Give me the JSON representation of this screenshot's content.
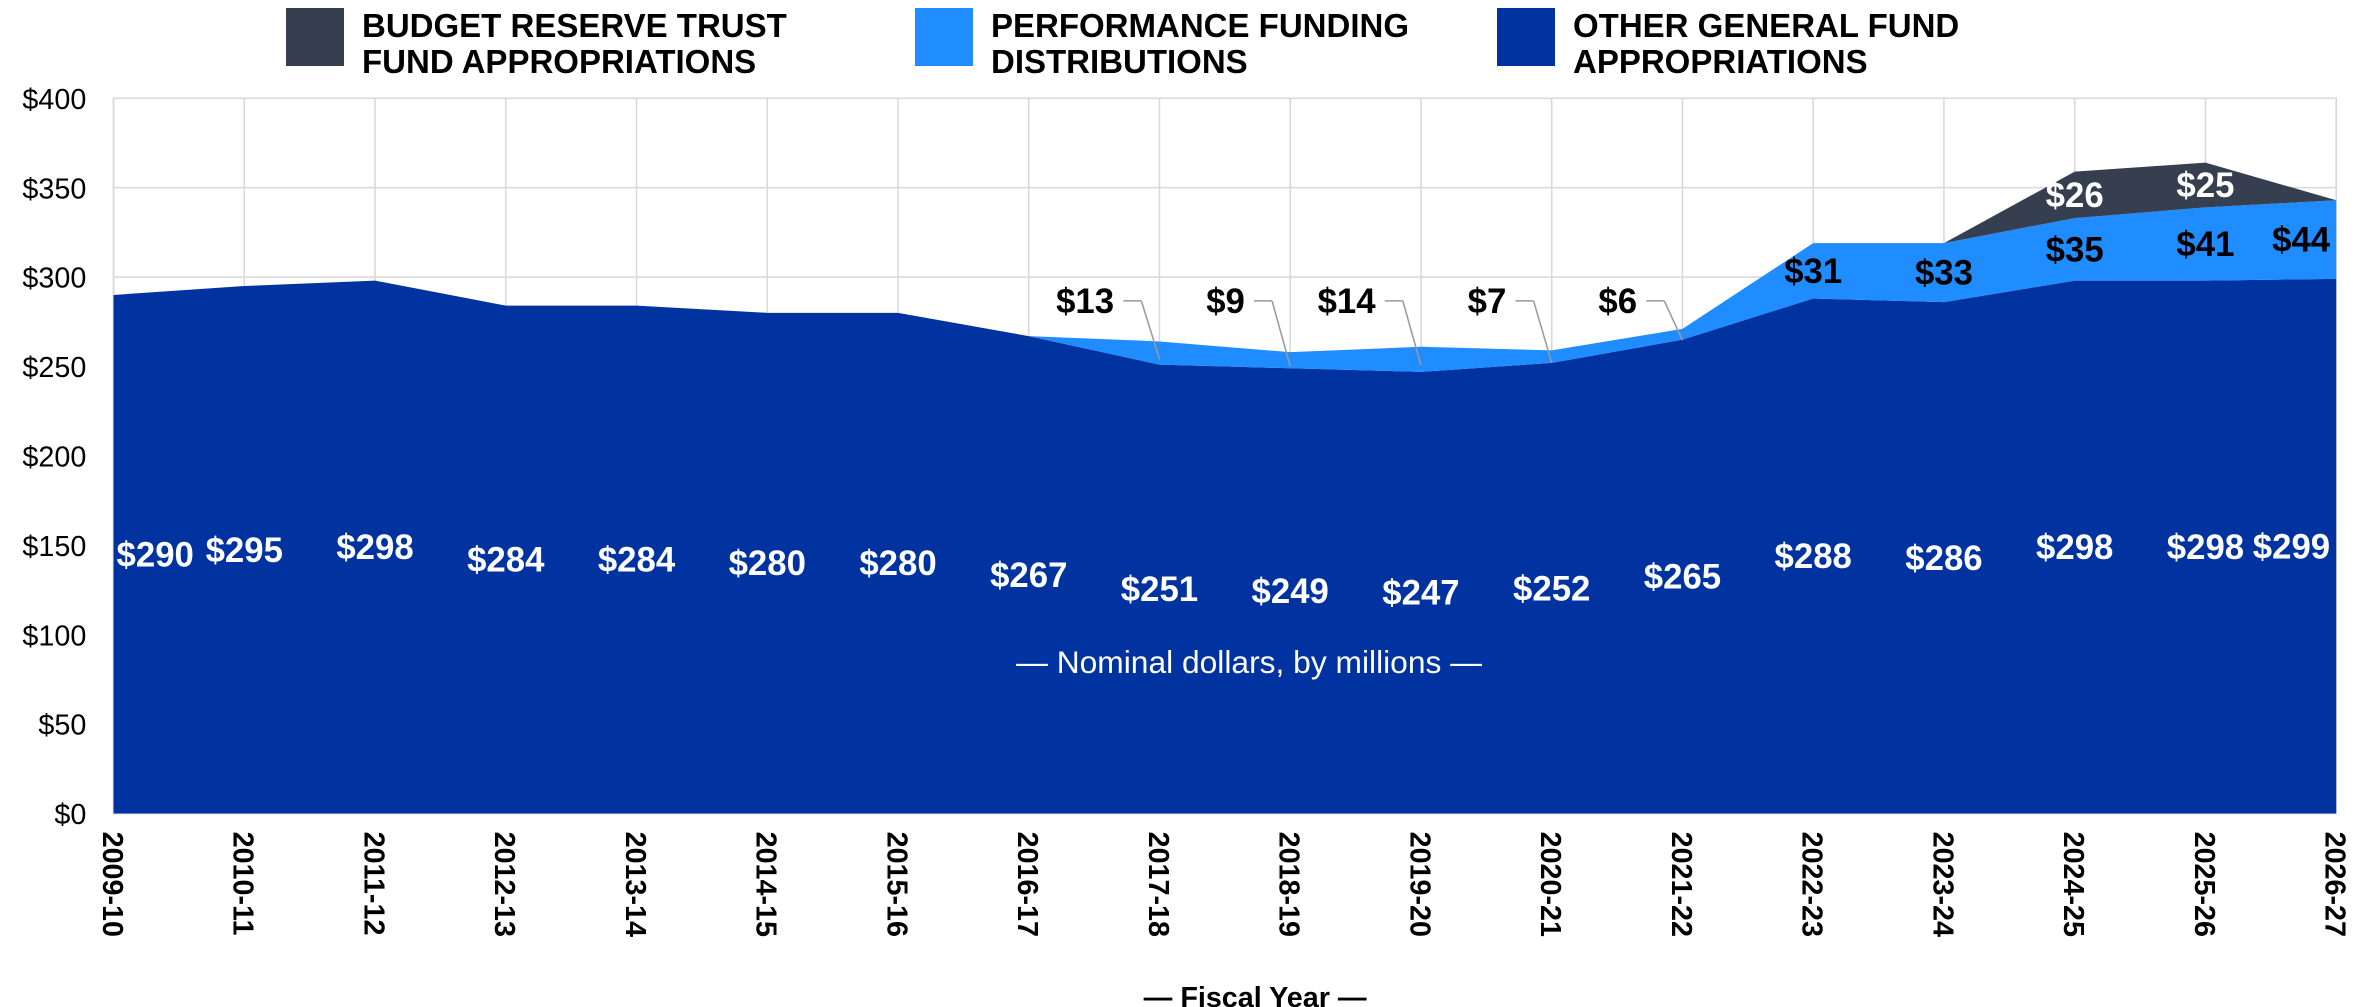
{
  "chart_data": {
    "type": "stacked_area",
    "categories": [
      "2009-10",
      "2010-11",
      "2011-12",
      "2012-13",
      "2013-14",
      "2014-15",
      "2015-16",
      "2016-17",
      "2017-18",
      "2018-19",
      "2019-20",
      "2020-21",
      "2021-22",
      "2022-23",
      "2023-24",
      "2024-25",
      "2025-26",
      "2026-27"
    ],
    "series": [
      {
        "name": "OTHER GENERAL FUND\nAPPROPRIATIONS",
        "color": "#0033a0",
        "values": [
          290,
          295,
          298,
          284,
          284,
          280,
          280,
          267,
          251,
          249,
          247,
          252,
          265,
          288,
          286,
          298,
          298,
          299
        ],
        "value_labels": [
          "$290",
          "$295",
          "$298",
          "$284",
          "$284",
          "$280",
          "$280",
          "$267",
          "$251",
          "$249",
          "$247",
          "$252",
          "$265",
          "$288",
          "$286",
          "$298",
          "$298",
          "$299"
        ]
      },
      {
        "name": "PERFORMANCE FUNDING\nDISTRIBUTIONS",
        "color": "#1f8cff",
        "values": [
          null,
          null,
          null,
          null,
          null,
          null,
          null,
          null,
          13,
          9,
          14,
          7,
          6,
          31,
          33,
          35,
          41,
          44
        ],
        "value_labels": [
          null,
          null,
          null,
          null,
          null,
          null,
          null,
          null,
          "$13",
          "$9",
          "$14",
          "$7",
          "$6",
          "$31",
          "$33",
          "$35",
          "$41",
          "$44"
        ]
      },
      {
        "name": "BUDGET RESERVE TRUST\nFUND APPROPRIATIONS",
        "color": "#353f4f",
        "values": [
          null,
          null,
          null,
          null,
          null,
          null,
          null,
          null,
          null,
          null,
          null,
          null,
          null,
          null,
          null,
          26,
          25,
          null
        ],
        "value_labels": [
          null,
          null,
          null,
          null,
          null,
          null,
          null,
          null,
          null,
          null,
          null,
          null,
          null,
          null,
          null,
          "$26",
          "$25",
          null
        ]
      }
    ],
    "ylim": [
      0,
      400
    ],
    "yticks": [
      {
        "value": 0,
        "label": "$0"
      },
      {
        "value": 50,
        "label": "$50"
      },
      {
        "value": 100,
        "label": "$100"
      },
      {
        "value": 150,
        "label": "$150"
      },
      {
        "value": 200,
        "label": "$200"
      },
      {
        "value": 250,
        "label": "$250"
      },
      {
        "value": 300,
        "label": "$300"
      },
      {
        "value": 350,
        "label": "$350"
      },
      {
        "value": 400,
        "label": "$400"
      }
    ],
    "annotation": "— Nominal dollars, by millions —",
    "x_label": "— Fiscal Year —",
    "grid": true
  }
}
